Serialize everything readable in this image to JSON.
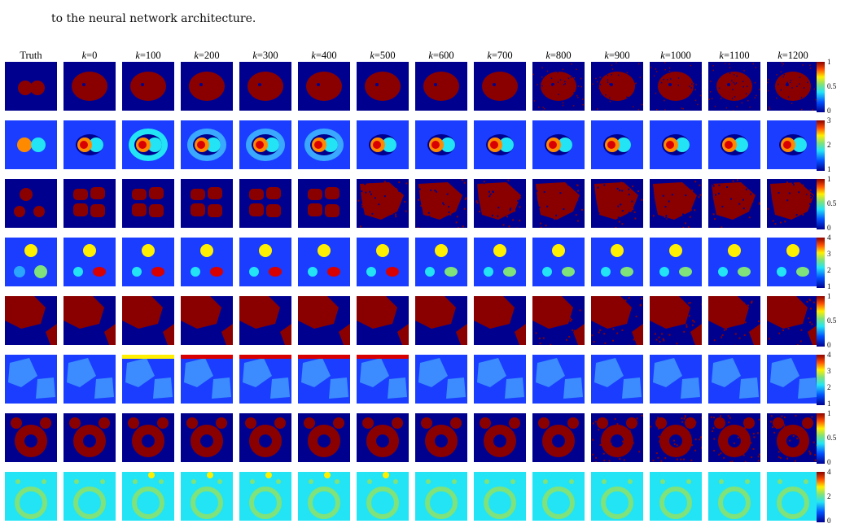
{
  "caption": "to the neural network architecture.",
  "column_headers": [
    {
      "prefix": "Truth",
      "value": ""
    },
    {
      "prefix": "k",
      "value": "=0"
    },
    {
      "prefix": "k",
      "value": "=100"
    },
    {
      "prefix": "k",
      "value": "=200"
    },
    {
      "prefix": "k",
      "value": "=300"
    },
    {
      "prefix": "k",
      "value": "=400"
    },
    {
      "prefix": "k",
      "value": "=500"
    },
    {
      "prefix": "k",
      "value": "=600"
    },
    {
      "prefix": "k",
      "value": "=700"
    },
    {
      "prefix": "k",
      "value": "=800"
    },
    {
      "prefix": "k",
      "value": "=900"
    },
    {
      "prefix": "k",
      "value": "=1000"
    },
    {
      "prefix": "k",
      "value": "=1100"
    },
    {
      "prefix": "k",
      "value": "=1200"
    }
  ],
  "colorbar_ticks": [
    [
      "1",
      "0.5",
      "0"
    ],
    [
      "3",
      "2",
      "1"
    ],
    [
      "1",
      "0.5",
      "0"
    ],
    [
      "4",
      "3",
      "2",
      "1"
    ],
    [
      "1",
      "0.5",
      "0"
    ],
    [
      "4",
      "3",
      "2",
      "1"
    ],
    [
      "1",
      "0.5",
      "0"
    ],
    [
      "4",
      "2",
      "0"
    ]
  ],
  "colors": {
    "dark_blue": "#00008f",
    "blue": "#1a3dff",
    "cyan": "#22e4f5",
    "green": "#7fe27a",
    "yellow": "#ffef00",
    "orange": "#ff8a00",
    "red": "#d80000",
    "dark_red": "#8a0000"
  }
}
